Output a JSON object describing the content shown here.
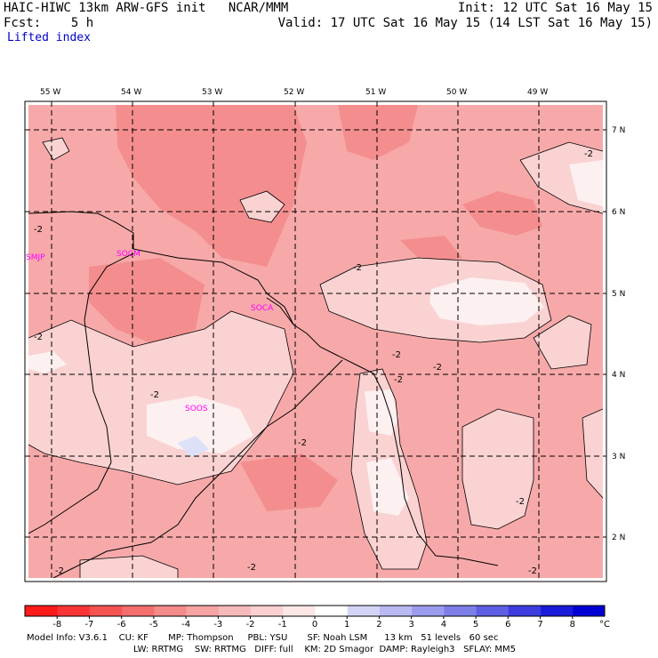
{
  "header": {
    "title": "HAIC-HIWC 13km ARW-GFS init   NCAR/MMM",
    "init": "Init: 12 UTC Sat 16 May 15",
    "fcst": "Fcst:    5 h",
    "valid": "Valid: 17 UTC Sat 16 May 15 (14 LST Sat 16 May 15)",
    "field": "Lifted index"
  },
  "map": {
    "longitude_labels": [
      "55 W",
      "54 W",
      "53 W",
      "52 W",
      "51 W",
      "50 W",
      "49 W"
    ],
    "latitude_labels": [
      "7 N",
      "6 N",
      "5 N",
      "4 N",
      "3 N",
      "2 N"
    ],
    "stations": [
      "SMJP",
      "SOCM",
      "SOCA",
      "SOOS"
    ],
    "contour_labels": [
      "-2",
      "-2",
      "-2",
      "-2",
      "-2",
      "-2",
      "-2",
      "-2",
      "-2",
      "-2",
      "-2",
      "-2",
      "-2"
    ],
    "colors": {
      "level_minus3": "#f48e8e",
      "level_minus2": "#f7a9a9",
      "level_minus1": "#fad2d2",
      "level_0": "#fdf0f0",
      "level_1": "#dde1f8"
    }
  },
  "colorbar": {
    "ticks": [
      "-8",
      "-7",
      "-6",
      "-5",
      "-4",
      "-3",
      "-2",
      "-1",
      "0",
      "1",
      "2",
      "3",
      "4",
      "5",
      "6",
      "7",
      "8"
    ],
    "unit": "°C",
    "colors": [
      "#ff1a1a",
      "#fb3535",
      "#f75252",
      "#f46e6e",
      "#f48a8a",
      "#f5a3a3",
      "#f7baba",
      "#fad0d0",
      "#fde6e6",
      "#ffffff",
      "#d4d4f6",
      "#b8b8f2",
      "#9c9cee",
      "#7e7ee9",
      "#5e5ee4",
      "#3c3cdf",
      "#1a1ada",
      "#0000d5"
    ]
  },
  "footer": {
    "line1": "Model Info: V3.6.1    CU: KF       MP: Thompson     PBL: YSU       SF: Noah LSM      13 km   51 levels   60 sec",
    "line2": "LW: RRTMG    SW: RRTMG   DIFF: full    KM: 2D Smagor  DAMP: Rayleigh3   SFLAY: MM5"
  }
}
